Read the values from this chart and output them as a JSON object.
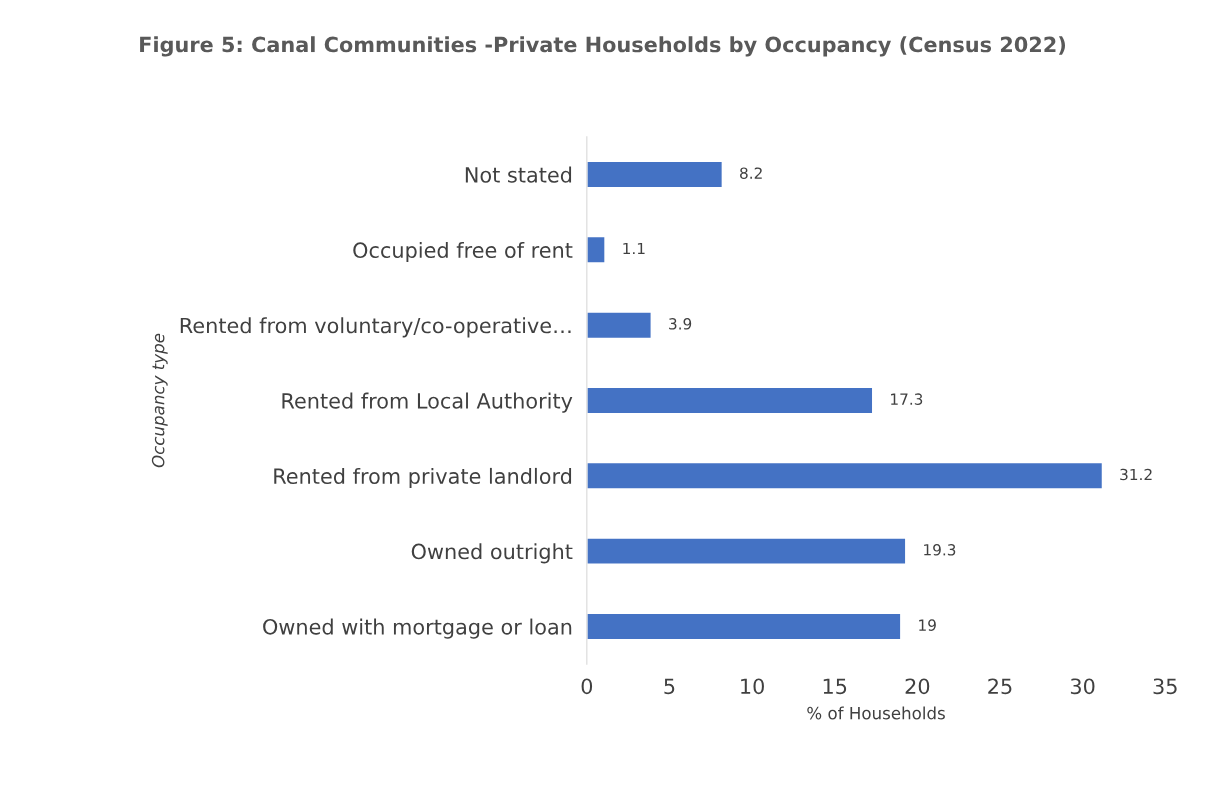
{
  "chart_data": {
    "type": "bar",
    "orientation": "horizontal",
    "title": "Figure 5: Canal Communities -Private Households by Occupancy (Census 2022)",
    "xlabel": "% of Households",
    "ylabel": "Occupancy type",
    "categories": [
      "Not stated",
      "Occupied free of rent",
      "Rented from voluntary/co-operative…",
      "Rented from Local Authority",
      "Rented from private landlord",
      "Owned outright",
      "Owned with mortgage or loan"
    ],
    "values": [
      8.2,
      1.1,
      3.9,
      17.3,
      31.2,
      19.3,
      19
    ],
    "color": "#4472c4",
    "xlim": [
      0,
      35
    ],
    "xticks": [
      0,
      5,
      10,
      15,
      20,
      25,
      30,
      35
    ],
    "grid": false,
    "data_labels": true
  }
}
